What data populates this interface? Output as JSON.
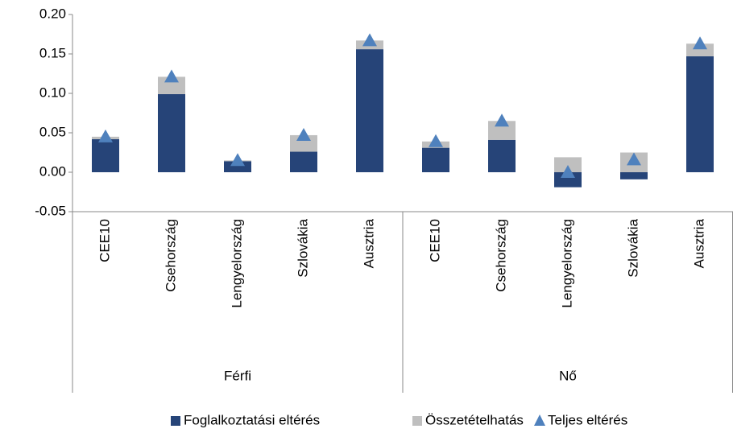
{
  "chart_data": {
    "type": "bar",
    "stacked": true,
    "groups": [
      {
        "name": "Férfi",
        "categories": [
          "CEE10",
          "Csehország",
          "Lengyelország",
          "Szlovákia",
          "Ausztria"
        ]
      },
      {
        "name": "Nő",
        "categories": [
          "CEE10",
          "Csehország",
          "Lengyelország",
          "Szlovákia",
          "Ausztria"
        ]
      }
    ],
    "series": [
      {
        "name": "Foglalkoztatási eltérés",
        "type": "bar",
        "color": "#264478",
        "values": [
          0.042,
          0.099,
          0.014,
          0.026,
          0.156,
          0.031,
          0.041,
          -0.019,
          -0.009,
          0.147
        ]
      },
      {
        "name": "Összetételhatás",
        "type": "bar",
        "color": "#bfbfbf",
        "values": [
          0.003,
          0.022,
          0.001,
          0.021,
          0.011,
          0.008,
          0.024,
          0.019,
          0.025,
          0.016
        ]
      },
      {
        "name": "Teljes eltérés",
        "type": "triangle",
        "color": "#4f81bd",
        "values": [
          0.045,
          0.121,
          0.015,
          0.047,
          0.167,
          0.039,
          0.065,
          0.0,
          0.016,
          0.163
        ]
      }
    ],
    "ylim": [
      -0.05,
      0.2
    ],
    "yticks": [
      -0.05,
      {
        "value": 0,
        "label": "0.00"
      },
      0.05,
      {
        "value": 0.1,
        "label": "0.10"
      },
      {
        "value": 0.15,
        "label": "0.15"
      },
      {
        "value": 0.2,
        "label": "0.20"
      }
    ],
    "legend": "bottom"
  }
}
